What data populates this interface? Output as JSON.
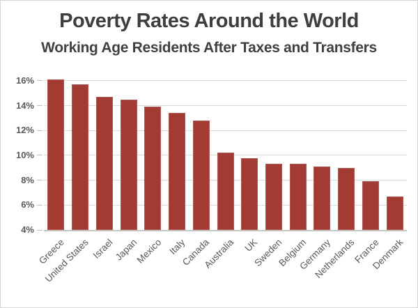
{
  "window": {
    "background": "#FFFFFF",
    "border_color": "#D6D6D6"
  },
  "chart_data": {
    "type": "bar",
    "title": "Poverty Rates Around the World",
    "subtitle": "Working Age Residents After Taxes and Transfers",
    "unit": "percent",
    "categories": [
      "Greece",
      "United States",
      "Israel",
      "Japan",
      "Mexico",
      "Italy",
      "Canada",
      "Australia",
      "UK",
      "Sweden",
      "Belgium",
      "Germany",
      "Netherlands",
      "France",
      "Denmark"
    ],
    "values": [
      16.1,
      15.7,
      14.7,
      14.5,
      13.9,
      13.4,
      12.8,
      10.2,
      9.8,
      9.3,
      9.3,
      9.1,
      9.0,
      7.9,
      6.7
    ],
    "ylim": [
      4,
      16.5
    ],
    "yticks": [
      4,
      6,
      8,
      10,
      12,
      14,
      16
    ],
    "ytick_labels": [
      "4%",
      "6%",
      "8%",
      "10%",
      "12%",
      "14%",
      "16%"
    ],
    "grid": true,
    "legend": false,
    "colors": {
      "bar": "#A23B33",
      "gridline": "#D9D9D9",
      "axis_line": "#C6C6C6",
      "tick_mark": "#C0C0C0",
      "axis_label": "#595959",
      "title": "#3E3E3E"
    }
  }
}
